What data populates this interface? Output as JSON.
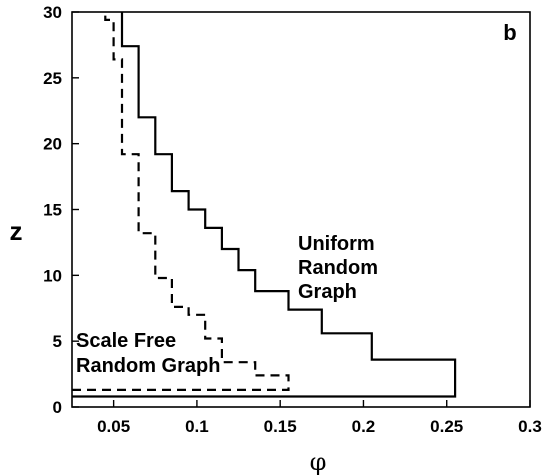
{
  "chart_data": {
    "type": "line",
    "panel_label": "b",
    "xlabel": "φ",
    "ylabel": "z",
    "xlim": [
      0.025,
      0.3
    ],
    "ylim": [
      0,
      30
    ],
    "x_ticks": [
      "0.05",
      "0.1",
      "0.15",
      "0.2",
      "0.25",
      "0.3"
    ],
    "y_ticks": [
      "0",
      "5",
      "10",
      "15",
      "20",
      "25",
      "30"
    ],
    "legend": "inline labels",
    "series": [
      {
        "name_lines": [
          "Uniform",
          "Random",
          "Graph"
        ],
        "style": "solid",
        "points": [
          [
            0.025,
            0.8
          ],
          [
            0.255,
            0.8
          ],
          [
            0.255,
            3.6
          ],
          [
            0.205,
            3.6
          ],
          [
            0.205,
            5.6
          ],
          [
            0.175,
            5.6
          ],
          [
            0.175,
            7.4
          ],
          [
            0.155,
            7.4
          ],
          [
            0.155,
            8.8
          ],
          [
            0.135,
            8.8
          ],
          [
            0.135,
            10.4
          ],
          [
            0.125,
            10.4
          ],
          [
            0.125,
            12.0
          ],
          [
            0.115,
            12.0
          ],
          [
            0.115,
            13.6
          ],
          [
            0.105,
            13.6
          ],
          [
            0.105,
            15.0
          ],
          [
            0.095,
            15.0
          ],
          [
            0.095,
            16.4
          ],
          [
            0.085,
            16.4
          ],
          [
            0.085,
            19.2
          ],
          [
            0.075,
            19.2
          ],
          [
            0.075,
            22.0
          ],
          [
            0.065,
            22.0
          ],
          [
            0.065,
            27.4
          ],
          [
            0.055,
            27.4
          ],
          [
            0.055,
            30
          ]
        ]
      },
      {
        "name_lines": [
          "Scale Free",
          "Random Graph"
        ],
        "style": "dashed",
        "points": [
          [
            0.025,
            1.3
          ],
          [
            0.155,
            1.3
          ],
          [
            0.155,
            2.4
          ],
          [
            0.135,
            2.4
          ],
          [
            0.135,
            3.4
          ],
          [
            0.115,
            3.4
          ],
          [
            0.115,
            5.2
          ],
          [
            0.105,
            5.2
          ],
          [
            0.105,
            7.0
          ],
          [
            0.095,
            7.0
          ],
          [
            0.095,
            7.6
          ],
          [
            0.085,
            7.6
          ],
          [
            0.085,
            9.8
          ],
          [
            0.075,
            9.8
          ],
          [
            0.075,
            13.2
          ],
          [
            0.065,
            13.2
          ],
          [
            0.065,
            19.2
          ],
          [
            0.055,
            19.2
          ],
          [
            0.055,
            26.4
          ],
          [
            0.05,
            26.4
          ],
          [
            0.05,
            29.4
          ],
          [
            0.045,
            29.4
          ],
          [
            0.045,
            30
          ]
        ]
      }
    ]
  }
}
